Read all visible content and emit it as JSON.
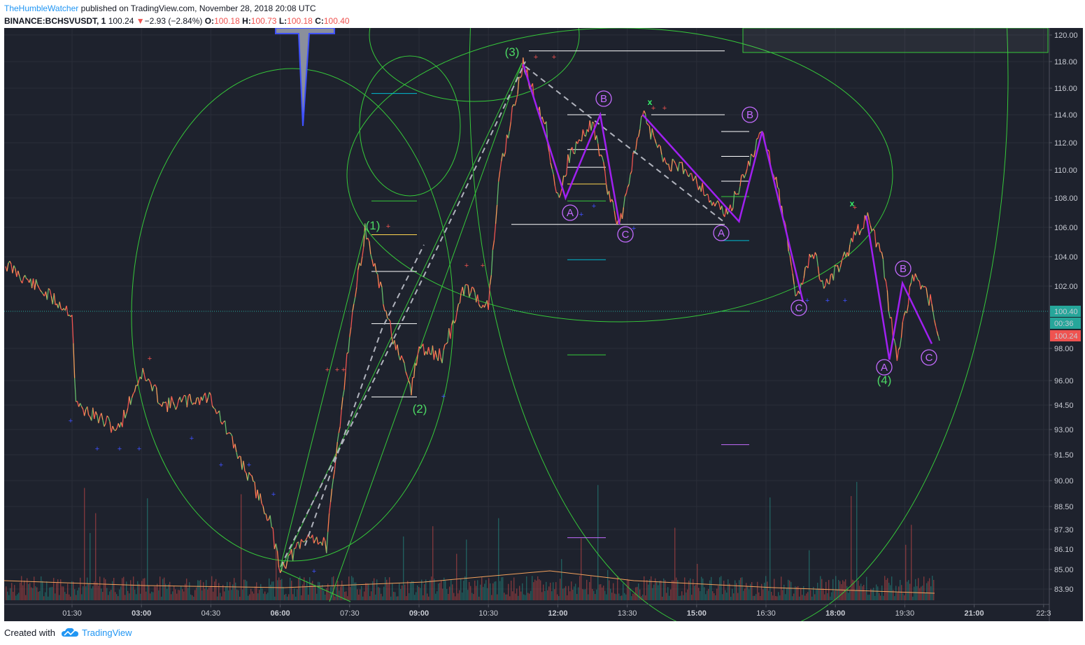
{
  "header": {
    "author": "TheHumbleWatcher",
    "published_text": " published on TradingView.com, November 28, 2018 20:08 UTC",
    "symbol": "BINANCE:BCHSVUSDT, 1",
    "last": "100.24",
    "down_arrow": "▼",
    "change": "−2.93 (−2.84%)",
    "o_label": "O:",
    "o_value": "100.18",
    "h_label": "H:",
    "h_value": "100.73",
    "l_label": "L:",
    "l_value": "100.18",
    "c_label": "C:",
    "c_value": "100.40"
  },
  "footer": {
    "created_with": "Created with",
    "brand": "TradingView",
    "logo_icon": "tradingview-cloud-icon"
  },
  "colors": {
    "chart_bg": "#1e222d",
    "grid": "#2a2e39",
    "circle_green": "#36c93a",
    "wave_purple": "#a020f0",
    "wave_label_green": "#4cd964",
    "wave_label_purple": "#c46bff",
    "price_up_tag": "#26a69a",
    "price_down_tag": "#ef5350"
  },
  "chart_data": {
    "type": "line",
    "title": "",
    "xlabel": "",
    "ylabel": "",
    "x_ticks": [
      "01:30",
      "03:00",
      "04:30",
      "06:00",
      "07:30",
      "09:00",
      "10:30",
      "12:00",
      "13:30",
      "15:00",
      "16:30",
      "18:00",
      "19:30",
      "21:00",
      "22:3"
    ],
    "y_ticks": [
      "120.00",
      "118.00",
      "116.00",
      "114.00",
      "112.00",
      "110.00",
      "108.00",
      "106.00",
      "104.00",
      "102.00",
      "100.40",
      "00:36",
      "100.24",
      "98.00",
      "96.00",
      "94.50",
      "93.00",
      "91.50",
      "90.00",
      "88.50",
      "87.30",
      "86.10",
      "85.00",
      "83.90"
    ],
    "current_price_tag": "100.40",
    "countdown_tag": "00:36",
    "prev_close_tag": "100.24",
    "price_series": {
      "name": "",
      "x": [
        "00:40",
        "01:30",
        "01:35",
        "02:30",
        "03:00",
        "03:30",
        "04:30",
        "05:05",
        "05:45",
        "06:00",
        "06:40",
        "07:00",
        "07:30",
        "07:50",
        "08:30",
        "08:50",
        "09:00",
        "09:30",
        "10:00",
        "10:30",
        "10:45",
        "11:15",
        "11:45",
        "12:00",
        "12:15",
        "12:45",
        "13:10",
        "13:20",
        "13:50",
        "14:20",
        "14:50",
        "15:20",
        "15:40",
        "16:00",
        "16:25",
        "16:45",
        "17:10",
        "17:30",
        "17:45",
        "18:10",
        "18:40",
        "19:00",
        "19:20",
        "19:40",
        "20:05",
        "20:15"
      ],
      "values": [
        103.5,
        100.3,
        94.5,
        93.0,
        96.5,
        94.5,
        95.0,
        91.5,
        88.0,
        85.1,
        87.0,
        86.3,
        99.0,
        105.8,
        98.0,
        95.5,
        98.0,
        97.5,
        102.0,
        100.6,
        110.0,
        117.8,
        113.0,
        107.9,
        111.0,
        113.5,
        107.5,
        106.2,
        114.0,
        110.5,
        110.0,
        107.8,
        106.8,
        109.5,
        112.8,
        109.0,
        101.2,
        104.5,
        102.0,
        103.8,
        106.8,
        104.0,
        97.2,
        102.8,
        101.0,
        98.5
      ]
    },
    "annotations": {
      "impulse_waves": [
        "(1)",
        "(2)",
        "(3)",
        "(4)"
      ],
      "corrective_waves": [
        "A",
        "B",
        "C",
        "A",
        "B",
        "C",
        "A",
        "B",
        "C"
      ],
      "markers": [
        "x",
        "x"
      ]
    }
  }
}
